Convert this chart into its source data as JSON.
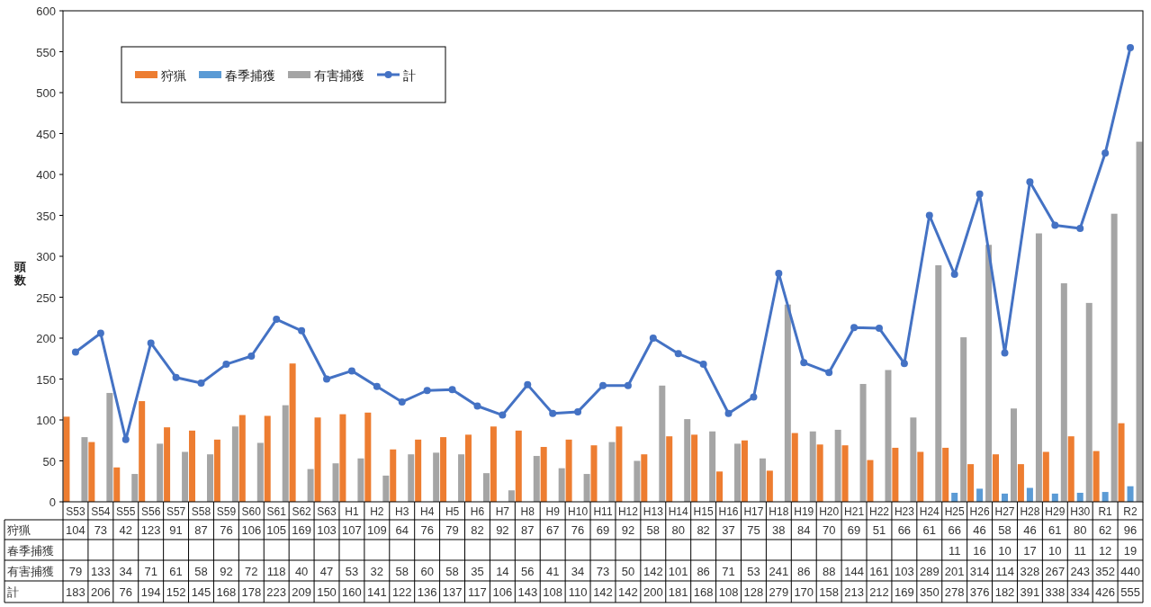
{
  "chart_data": {
    "type": "bar",
    "ylabel": "頭数",
    "categories": [
      "S53",
      "S54",
      "S55",
      "S56",
      "S57",
      "S58",
      "S59",
      "S60",
      "S61",
      "S62",
      "S63",
      "H1",
      "H2",
      "H3",
      "H4",
      "H5",
      "H6",
      "H7",
      "H8",
      "H9",
      "H10",
      "H11",
      "H12",
      "H13",
      "H14",
      "H15",
      "H16",
      "H17",
      "H18",
      "H19",
      "H20",
      "H21",
      "H22",
      "H23",
      "H24",
      "H25",
      "H26",
      "H27",
      "H28",
      "H29",
      "H30",
      "R1",
      "R2"
    ],
    "series": [
      {
        "name": "狩猟",
        "color": "#ed7d31",
        "values": [
          104,
          73,
          42,
          123,
          91,
          87,
          76,
          106,
          105,
          169,
          103,
          107,
          109,
          64,
          76,
          79,
          82,
          92,
          87,
          67,
          76,
          69,
          92,
          58,
          80,
          82,
          37,
          75,
          38,
          84,
          70,
          69,
          51,
          66,
          61,
          66,
          46,
          58,
          46,
          61,
          80,
          62,
          96
        ]
      },
      {
        "name": "春季捕獲",
        "color": "#5b9bd5",
        "values": [
          null,
          null,
          null,
          null,
          null,
          null,
          null,
          null,
          null,
          null,
          null,
          null,
          null,
          null,
          null,
          null,
          null,
          null,
          null,
          null,
          null,
          null,
          null,
          null,
          null,
          null,
          null,
          null,
          null,
          null,
          null,
          null,
          null,
          null,
          null,
          11,
          16,
          10,
          17,
          10,
          11,
          12,
          19
        ]
      },
      {
        "name": "有害捕獲",
        "color": "#a5a5a5",
        "values": [
          79,
          133,
          34,
          71,
          61,
          58,
          92,
          72,
          118,
          40,
          47,
          53,
          32,
          58,
          60,
          58,
          35,
          14,
          56,
          41,
          34,
          73,
          50,
          142,
          101,
          86,
          71,
          53,
          241,
          86,
          88,
          144,
          161,
          103,
          289,
          201,
          314,
          114,
          328,
          267,
          243,
          352,
          440
        ]
      },
      {
        "name": "計",
        "type": "line",
        "color": "#4472c4",
        "values": [
          183,
          206,
          76,
          194,
          152,
          145,
          168,
          178,
          223,
          209,
          150,
          160,
          141,
          122,
          136,
          137,
          117,
          106,
          143,
          108,
          110,
          142,
          142,
          200,
          181,
          168,
          108,
          128,
          279,
          170,
          158,
          213,
          212,
          169,
          350,
          278,
          376,
          182,
          391,
          338,
          334,
          426,
          555
        ]
      }
    ],
    "ylim": [
      0,
      600
    ],
    "yticks": [
      0,
      50,
      100,
      150,
      200,
      250,
      300,
      350,
      400,
      450,
      500,
      550,
      600
    ],
    "grid": false,
    "legend": "top left",
    "marker": "circle",
    "data_labels": true
  }
}
